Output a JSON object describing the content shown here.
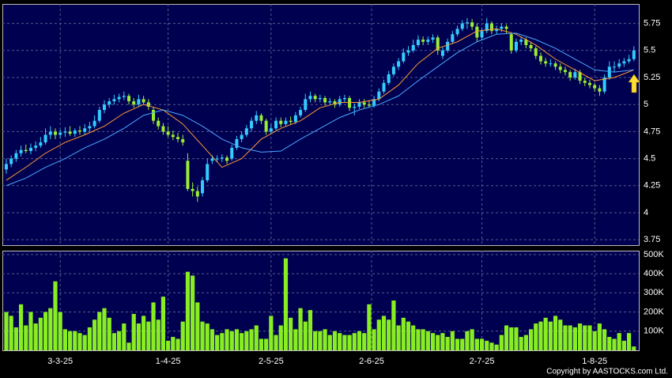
{
  "chart_data": [
    {
      "type": "candlestick",
      "up_color": "#33ccff",
      "down_color": "#99ee33",
      "ylim": [
        3.7,
        5.93
      ],
      "xlim": [
        -0.8,
        129
      ],
      "grid": true,
      "yticks": [
        3.75,
        4,
        4.25,
        4.5,
        4.75,
        5,
        5.25,
        5.5,
        5.75
      ],
      "ohlc": [
        [
          4.4,
          4.5,
          4.36,
          4.45
        ],
        [
          4.45,
          4.53,
          4.42,
          4.5
        ],
        [
          4.5,
          4.58,
          4.47,
          4.55
        ],
        [
          4.55,
          4.62,
          4.52,
          4.58
        ],
        [
          4.58,
          4.63,
          4.55,
          4.57
        ],
        [
          4.57,
          4.64,
          4.54,
          4.6
        ],
        [
          4.6,
          4.66,
          4.57,
          4.62
        ],
        [
          4.62,
          4.7,
          4.6,
          4.65
        ],
        [
          4.65,
          4.78,
          4.63,
          4.72
        ],
        [
          4.72,
          4.8,
          4.68,
          4.75
        ],
        [
          4.75,
          4.78,
          4.68,
          4.72
        ],
        [
          4.72,
          4.77,
          4.69,
          4.74
        ],
        [
          4.74,
          4.79,
          4.7,
          4.75
        ],
        [
          4.75,
          4.8,
          4.71,
          4.73
        ],
        [
          4.73,
          4.78,
          4.7,
          4.76
        ],
        [
          4.76,
          4.8,
          4.72,
          4.75
        ],
        [
          4.75,
          4.82,
          4.72,
          4.78
        ],
        [
          4.78,
          4.84,
          4.75,
          4.8
        ],
        [
          4.8,
          4.9,
          4.78,
          4.85
        ],
        [
          4.85,
          4.98,
          4.83,
          4.95
        ],
        [
          4.95,
          5.04,
          4.92,
          5.0
        ],
        [
          5.0,
          5.06,
          4.97,
          5.03
        ],
        [
          5.03,
          5.09,
          5.0,
          5.05
        ],
        [
          5.05,
          5.1,
          5.02,
          5.07
        ],
        [
          5.07,
          5.12,
          5.04,
          5.08
        ],
        [
          5.08,
          5.1,
          5.0,
          5.03
        ],
        [
          5.03,
          5.06,
          4.97,
          5.0
        ],
        [
          5.0,
          5.09,
          4.98,
          5.05
        ],
        [
          5.05,
          5.08,
          5.0,
          5.02
        ],
        [
          5.02,
          5.05,
          4.95,
          4.98
        ],
        [
          4.95,
          4.98,
          4.82,
          4.85
        ],
        [
          4.85,
          4.88,
          4.77,
          4.8
        ],
        [
          4.8,
          4.83,
          4.72,
          4.75
        ],
        [
          4.75,
          4.8,
          4.7,
          4.72
        ],
        [
          4.72,
          4.76,
          4.67,
          4.7
        ],
        [
          4.7,
          4.74,
          4.65,
          4.68
        ],
        [
          4.68,
          4.72,
          4.62,
          4.65
        ],
        [
          4.48,
          4.55,
          4.2,
          4.22
        ],
        [
          4.22,
          4.28,
          4.15,
          4.2
        ],
        [
          4.2,
          4.24,
          4.1,
          4.15
        ],
        [
          4.18,
          4.33,
          4.15,
          4.3
        ],
        [
          4.3,
          4.5,
          4.28,
          4.45
        ],
        [
          4.48,
          4.53,
          4.45,
          4.5
        ],
        [
          4.5,
          4.53,
          4.47,
          4.5
        ],
        [
          4.5,
          4.54,
          4.47,
          4.51
        ],
        [
          4.51,
          4.53,
          4.45,
          4.48
        ],
        [
          4.5,
          4.63,
          4.48,
          4.6
        ],
        [
          4.6,
          4.71,
          4.58,
          4.68
        ],
        [
          4.68,
          4.75,
          4.65,
          4.72
        ],
        [
          4.72,
          4.81,
          4.7,
          4.78
        ],
        [
          4.78,
          4.88,
          4.75,
          4.85
        ],
        [
          4.85,
          4.94,
          4.82,
          4.9
        ],
        [
          4.9,
          4.92,
          4.82,
          4.85
        ],
        [
          4.85,
          4.87,
          4.72,
          4.75
        ],
        [
          4.75,
          4.82,
          4.73,
          4.78
        ],
        [
          4.78,
          4.88,
          4.76,
          4.85
        ],
        [
          4.85,
          4.88,
          4.79,
          4.82
        ],
        [
          4.82,
          4.88,
          4.8,
          4.85
        ],
        [
          4.85,
          4.89,
          4.81,
          4.84
        ],
        [
          4.84,
          4.93,
          4.82,
          4.9
        ],
        [
          4.9,
          4.98,
          4.88,
          4.95
        ],
        [
          4.95,
          5.1,
          4.93,
          5.05
        ],
        [
          5.05,
          5.12,
          5.02,
          5.08
        ],
        [
          5.08,
          5.1,
          5.02,
          5.05
        ],
        [
          5.05,
          5.09,
          5.02,
          5.06
        ],
        [
          5.06,
          5.08,
          4.99,
          5.02
        ],
        [
          5.02,
          5.06,
          5.0,
          5.03
        ],
        [
          5.03,
          5.05,
          4.97,
          5.0
        ],
        [
          5.0,
          5.08,
          4.98,
          5.05
        ],
        [
          5.05,
          5.09,
          5.02,
          5.06
        ],
        [
          5.06,
          5.08,
          4.94,
          4.97
        ],
        [
          4.97,
          5.01,
          4.9,
          4.98
        ],
        [
          4.98,
          5.05,
          4.96,
          5.02
        ],
        [
          5.02,
          5.05,
          4.97,
          5.0
        ],
        [
          5.0,
          5.04,
          4.97,
          4.99
        ],
        [
          4.99,
          5.08,
          4.97,
          5.05
        ],
        [
          5.05,
          5.15,
          5.03,
          5.12
        ],
        [
          5.12,
          5.23,
          5.1,
          5.2
        ],
        [
          5.2,
          5.31,
          5.18,
          5.28
        ],
        [
          5.28,
          5.38,
          5.26,
          5.35
        ],
        [
          5.35,
          5.43,
          5.32,
          5.4
        ],
        [
          5.4,
          5.52,
          5.38,
          5.48
        ],
        [
          5.48,
          5.54,
          5.45,
          5.5
        ],
        [
          5.5,
          5.6,
          5.48,
          5.55
        ],
        [
          5.55,
          5.64,
          5.53,
          5.6
        ],
        [
          5.6,
          5.63,
          5.55,
          5.58
        ],
        [
          5.58,
          5.63,
          5.55,
          5.6
        ],
        [
          5.6,
          5.65,
          5.57,
          5.62
        ],
        [
          5.62,
          5.64,
          5.46,
          5.5
        ],
        [
          5.45,
          5.53,
          5.42,
          5.5
        ],
        [
          5.5,
          5.61,
          5.48,
          5.58
        ],
        [
          5.58,
          5.68,
          5.56,
          5.65
        ],
        [
          5.65,
          5.73,
          5.63,
          5.7
        ],
        [
          5.7,
          5.78,
          5.68,
          5.75
        ],
        [
          5.75,
          5.8,
          5.7,
          5.76
        ],
        [
          5.76,
          5.79,
          5.69,
          5.72
        ],
        [
          5.72,
          5.75,
          5.58,
          5.62
        ],
        [
          5.62,
          5.71,
          5.6,
          5.68
        ],
        [
          5.68,
          5.8,
          5.66,
          5.75
        ],
        [
          5.75,
          5.77,
          5.65,
          5.68
        ],
        [
          5.68,
          5.73,
          5.65,
          5.7
        ],
        [
          5.7,
          5.75,
          5.67,
          5.72
        ],
        [
          5.72,
          5.74,
          5.66,
          5.7
        ],
        [
          5.65,
          5.67,
          5.47,
          5.5
        ],
        [
          5.5,
          5.61,
          5.48,
          5.58
        ],
        [
          5.58,
          5.63,
          5.55,
          5.6
        ],
        [
          5.6,
          5.62,
          5.52,
          5.55
        ],
        [
          5.55,
          5.58,
          5.49,
          5.52
        ],
        [
          5.52,
          5.54,
          5.42,
          5.45
        ],
        [
          5.45,
          5.48,
          5.37,
          5.4
        ],
        [
          5.4,
          5.43,
          5.35,
          5.38
        ],
        [
          5.38,
          5.42,
          5.35,
          5.38
        ],
        [
          5.38,
          5.4,
          5.32,
          5.35
        ],
        [
          5.35,
          5.38,
          5.29,
          5.32
        ],
        [
          5.32,
          5.35,
          5.27,
          5.3
        ],
        [
          5.3,
          5.32,
          5.22,
          5.25
        ],
        [
          5.25,
          5.33,
          5.23,
          5.3
        ],
        [
          5.3,
          5.32,
          5.19,
          5.22
        ],
        [
          5.22,
          5.25,
          5.17,
          5.2
        ],
        [
          5.2,
          5.23,
          5.15,
          5.18
        ],
        [
          5.18,
          5.2,
          5.12,
          5.15
        ],
        [
          5.15,
          5.18,
          5.08,
          5.12
        ],
        [
          5.12,
          5.28,
          5.1,
          5.25
        ],
        [
          5.25,
          5.4,
          5.23,
          5.35
        ],
        [
          5.35,
          5.4,
          5.3,
          5.35
        ],
        [
          5.35,
          5.42,
          5.33,
          5.38
        ],
        [
          5.38,
          5.43,
          5.35,
          5.4
        ],
        [
          5.4,
          5.46,
          5.38,
          5.42
        ],
        [
          5.42,
          5.54,
          5.4,
          5.5
        ]
      ],
      "series": [
        {
          "color": "#ff9933",
          "x": [
            0,
            4,
            8,
            12,
            16,
            20,
            24,
            28,
            32,
            36,
            40,
            44,
            48,
            52,
            56,
            60,
            64,
            68,
            72,
            76,
            80,
            84,
            88,
            92,
            96,
            100,
            104,
            108,
            112,
            116,
            120,
            124,
            128
          ],
          "values": [
            4.3,
            4.42,
            4.55,
            4.65,
            4.72,
            4.8,
            4.92,
            5.0,
            4.95,
            4.82,
            4.62,
            4.42,
            4.5,
            4.68,
            4.78,
            4.85,
            4.97,
            5.02,
            5.02,
            5.05,
            5.18,
            5.38,
            5.52,
            5.58,
            5.68,
            5.7,
            5.65,
            5.55,
            5.42,
            5.32,
            5.22,
            5.25,
            5.32
          ]
        },
        {
          "color": "#4aa8ff",
          "x": [
            0,
            4,
            8,
            12,
            16,
            20,
            24,
            28,
            32,
            36,
            40,
            44,
            48,
            52,
            56,
            60,
            64,
            68,
            72,
            76,
            80,
            84,
            88,
            92,
            96,
            100,
            104,
            108,
            112,
            116,
            120,
            124,
            128
          ],
          "values": [
            4.25,
            4.32,
            4.42,
            4.5,
            4.6,
            4.68,
            4.78,
            4.9,
            4.95,
            4.9,
            4.8,
            4.68,
            4.6,
            4.56,
            4.57,
            4.68,
            4.78,
            4.88,
            4.95,
            5.0,
            5.08,
            5.22,
            5.35,
            5.48,
            5.58,
            5.65,
            5.66,
            5.6,
            5.52,
            5.42,
            5.32,
            5.3,
            5.32
          ]
        }
      ]
    },
    {
      "type": "bar",
      "color": "#88ee22",
      "ylim": [
        0,
        520000
      ],
      "xlim": [
        -0.8,
        129
      ],
      "grid": true,
      "yticks": [
        {
          "value": 100000,
          "label": "100K"
        },
        {
          "value": 200000,
          "label": "200K"
        },
        {
          "value": 300000,
          "label": "300K"
        },
        {
          "value": 400000,
          "label": "400K"
        },
        {
          "value": 500000,
          "label": "500K"
        }
      ],
      "xticks": [
        {
          "value": 11,
          "label": "3-3-25"
        },
        {
          "value": 33,
          "label": "1-4-25"
        },
        {
          "value": 54,
          "label": "2-5-25"
        },
        {
          "value": 74.5,
          "label": "2-6-25"
        },
        {
          "value": 97,
          "label": "2-7-25"
        },
        {
          "value": 120,
          "label": "1-8-25"
        }
      ],
      "values": [
        200000,
        180000,
        120000,
        240000,
        130000,
        200000,
        140000,
        170000,
        200000,
        220000,
        360000,
        200000,
        110000,
        100000,
        100000,
        90000,
        80000,
        120000,
        160000,
        200000,
        220000,
        170000,
        90000,
        100000,
        140000,
        40000,
        190000,
        140000,
        180000,
        150000,
        250000,
        160000,
        280000,
        50000,
        70000,
        60000,
        150000,
        410000,
        390000,
        250000,
        150000,
        140000,
        110000,
        80000,
        90000,
        110000,
        100000,
        110000,
        90000,
        100000,
        110000,
        130000,
        60000,
        60000,
        180000,
        80000,
        130000,
        480000,
        170000,
        110000,
        220000,
        150000,
        210000,
        100000,
        100000,
        110000,
        80000,
        100000,
        90000,
        80000,
        80000,
        90000,
        100000,
        90000,
        240000,
        110000,
        160000,
        180000,
        160000,
        260000,
        130000,
        170000,
        150000,
        130000,
        110000,
        110000,
        100000,
        90000,
        80000,
        90000,
        70000,
        100000,
        60000,
        60000,
        100000,
        110000,
        60000,
        60000,
        50000,
        40000,
        30000,
        80000,
        130000,
        120000,
        120000,
        70000,
        80000,
        110000,
        140000,
        150000,
        170000,
        150000,
        180000,
        160000,
        130000,
        130000,
        120000,
        140000,
        130000,
        130000,
        100000,
        140000,
        110000,
        70000,
        60000,
        90000,
        50000,
        90000,
        20000
      ]
    }
  ],
  "footer": "Copyright by AASTOCKS.com Ltd."
}
